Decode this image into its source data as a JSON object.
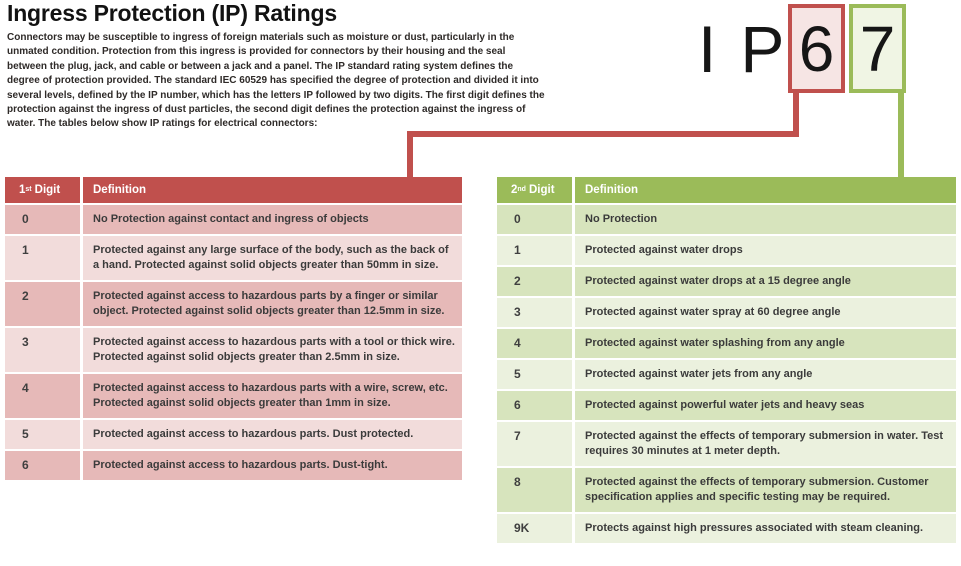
{
  "page": {
    "title": "Ingress Protection (IP) Ratings",
    "intro": "Connectors may be susceptible to ingress of foreign materials such as moisture or dust, particularly in the unmated condition. Protection from this ingress is provided for connectors by their housing and the seal between the plug, jack, and cable or between a jack and a panel. The IP standard rating system defines the degree of protection provided. The standard IEC 60529 has specified the degree of protection and divided it into several levels, defined by the IP number, which has the letters IP followed by two digits. The first digit defines the protection against the ingress of dust particles, the second digit defines the protection against the ingress of water. The tables below show IP ratings for electrical connectors:"
  },
  "ip_graphic": {
    "prefix": "IP",
    "first_digit": "6",
    "second_digit": "7"
  },
  "colors": {
    "red": "#c0504d",
    "green": "#9bbb59",
    "red-row-dark": "#e6b9b8",
    "red-row-light": "#f2dcdb",
    "green-row-dark": "#d7e4bd",
    "green-row-light": "#ebf1de",
    "red-box-fill": "#f6e5e4",
    "green-box-fill": "#f0f5e4"
  },
  "tables": {
    "first": {
      "header": {
        "num": "1",
        "sup": "st",
        "word": "Digit",
        "definition": "Definition"
      },
      "rows": [
        {
          "digit": "0",
          "definition": "No Protection against contact and ingress of objects"
        },
        {
          "digit": "1",
          "definition": "Protected against any large surface of the body, such as the back of a hand. Protected against solid objects greater than 50mm in size."
        },
        {
          "digit": "2",
          "definition": "Protected against access to hazardous parts by a finger or similar object. Protected against solid objects greater than 12.5mm in size."
        },
        {
          "digit": "3",
          "definition": "Protected against access to hazardous parts with a tool or thick wire. Protected against solid objects greater than 2.5mm in size."
        },
        {
          "digit": "4",
          "definition": "Protected against access to hazardous parts with a wire, screw, etc. Protected against solid objects greater than 1mm in size."
        },
        {
          "digit": "5",
          "definition": "Protected against access to hazardous parts. Dust protected."
        },
        {
          "digit": "6",
          "definition": "Protected against access to hazardous parts. Dust-tight."
        }
      ]
    },
    "second": {
      "header": {
        "num": "2",
        "sup": "nd",
        "word": "Digit",
        "definition": "Definition"
      },
      "rows": [
        {
          "digit": "0",
          "definition": "No Protection"
        },
        {
          "digit": "1",
          "definition": "Protected against water drops"
        },
        {
          "digit": "2",
          "definition": "Protected against water drops at a 15 degree angle"
        },
        {
          "digit": "3",
          "definition": "Protected against water spray at 60 degree angle"
        },
        {
          "digit": "4",
          "definition": "Protected against water splashing from any angle"
        },
        {
          "digit": "5",
          "definition": "Protected against water jets from any angle"
        },
        {
          "digit": "6",
          "definition": "Protected against powerful water jets and heavy seas"
        },
        {
          "digit": "7",
          "definition": "Protected against the effects of temporary submersion in water. Test requires 30 minutes at 1 meter depth."
        },
        {
          "digit": "8",
          "definition": "Protected against the effects of temporary submersion. Customer specification applies and specific testing may be required."
        },
        {
          "digit": "9K",
          "definition": "Protects against high pressures associated with steam cleaning."
        }
      ]
    }
  }
}
